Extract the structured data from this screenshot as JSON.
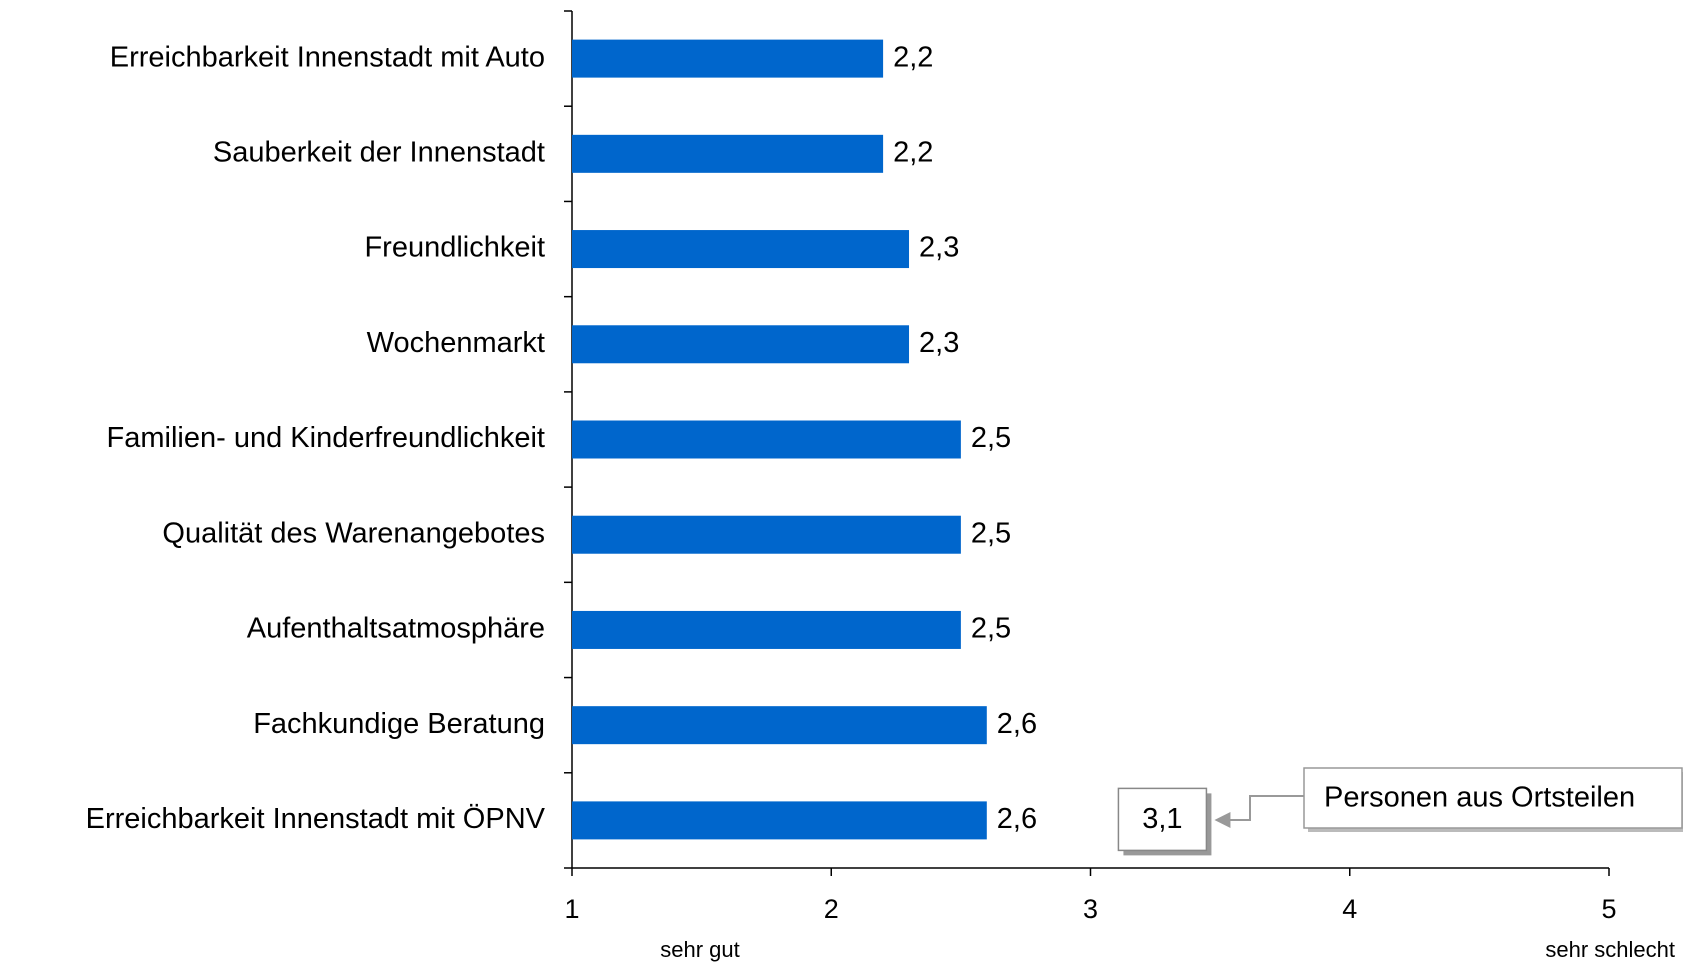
{
  "chart_data": {
    "type": "bar",
    "orientation": "horizontal",
    "categories": [
      "Erreichbarkeit Innenstadt mit Auto",
      "Sauberkeit der Innenstadt",
      "Freundlichkeit",
      "Wochenmarkt",
      "Familien- und Kinderfreundlichkeit",
      "Qualität des Warenangebotes",
      "Aufenthaltsatmosphäre",
      "Fachkundige Beratung",
      "Erreichbarkeit Innenstadt mit ÖPNV"
    ],
    "values": [
      2.2,
      2.2,
      2.3,
      2.3,
      2.5,
      2.5,
      2.5,
      2.6,
      2.6
    ],
    "value_labels": [
      "2,2",
      "2,2",
      "2,3",
      "2,3",
      "2,5",
      "2,5",
      "2,5",
      "2,6",
      "2,6"
    ],
    "color": "#0066cc",
    "xlim": [
      1,
      5
    ],
    "xticks": [
      1,
      2,
      3,
      4,
      5
    ],
    "axis_end_labels": [
      "sehr gut",
      "sehr schlecht"
    ],
    "annotation": {
      "value": 3.1,
      "label": "3,1",
      "text": "Personen aus Ortsteilen"
    }
  }
}
